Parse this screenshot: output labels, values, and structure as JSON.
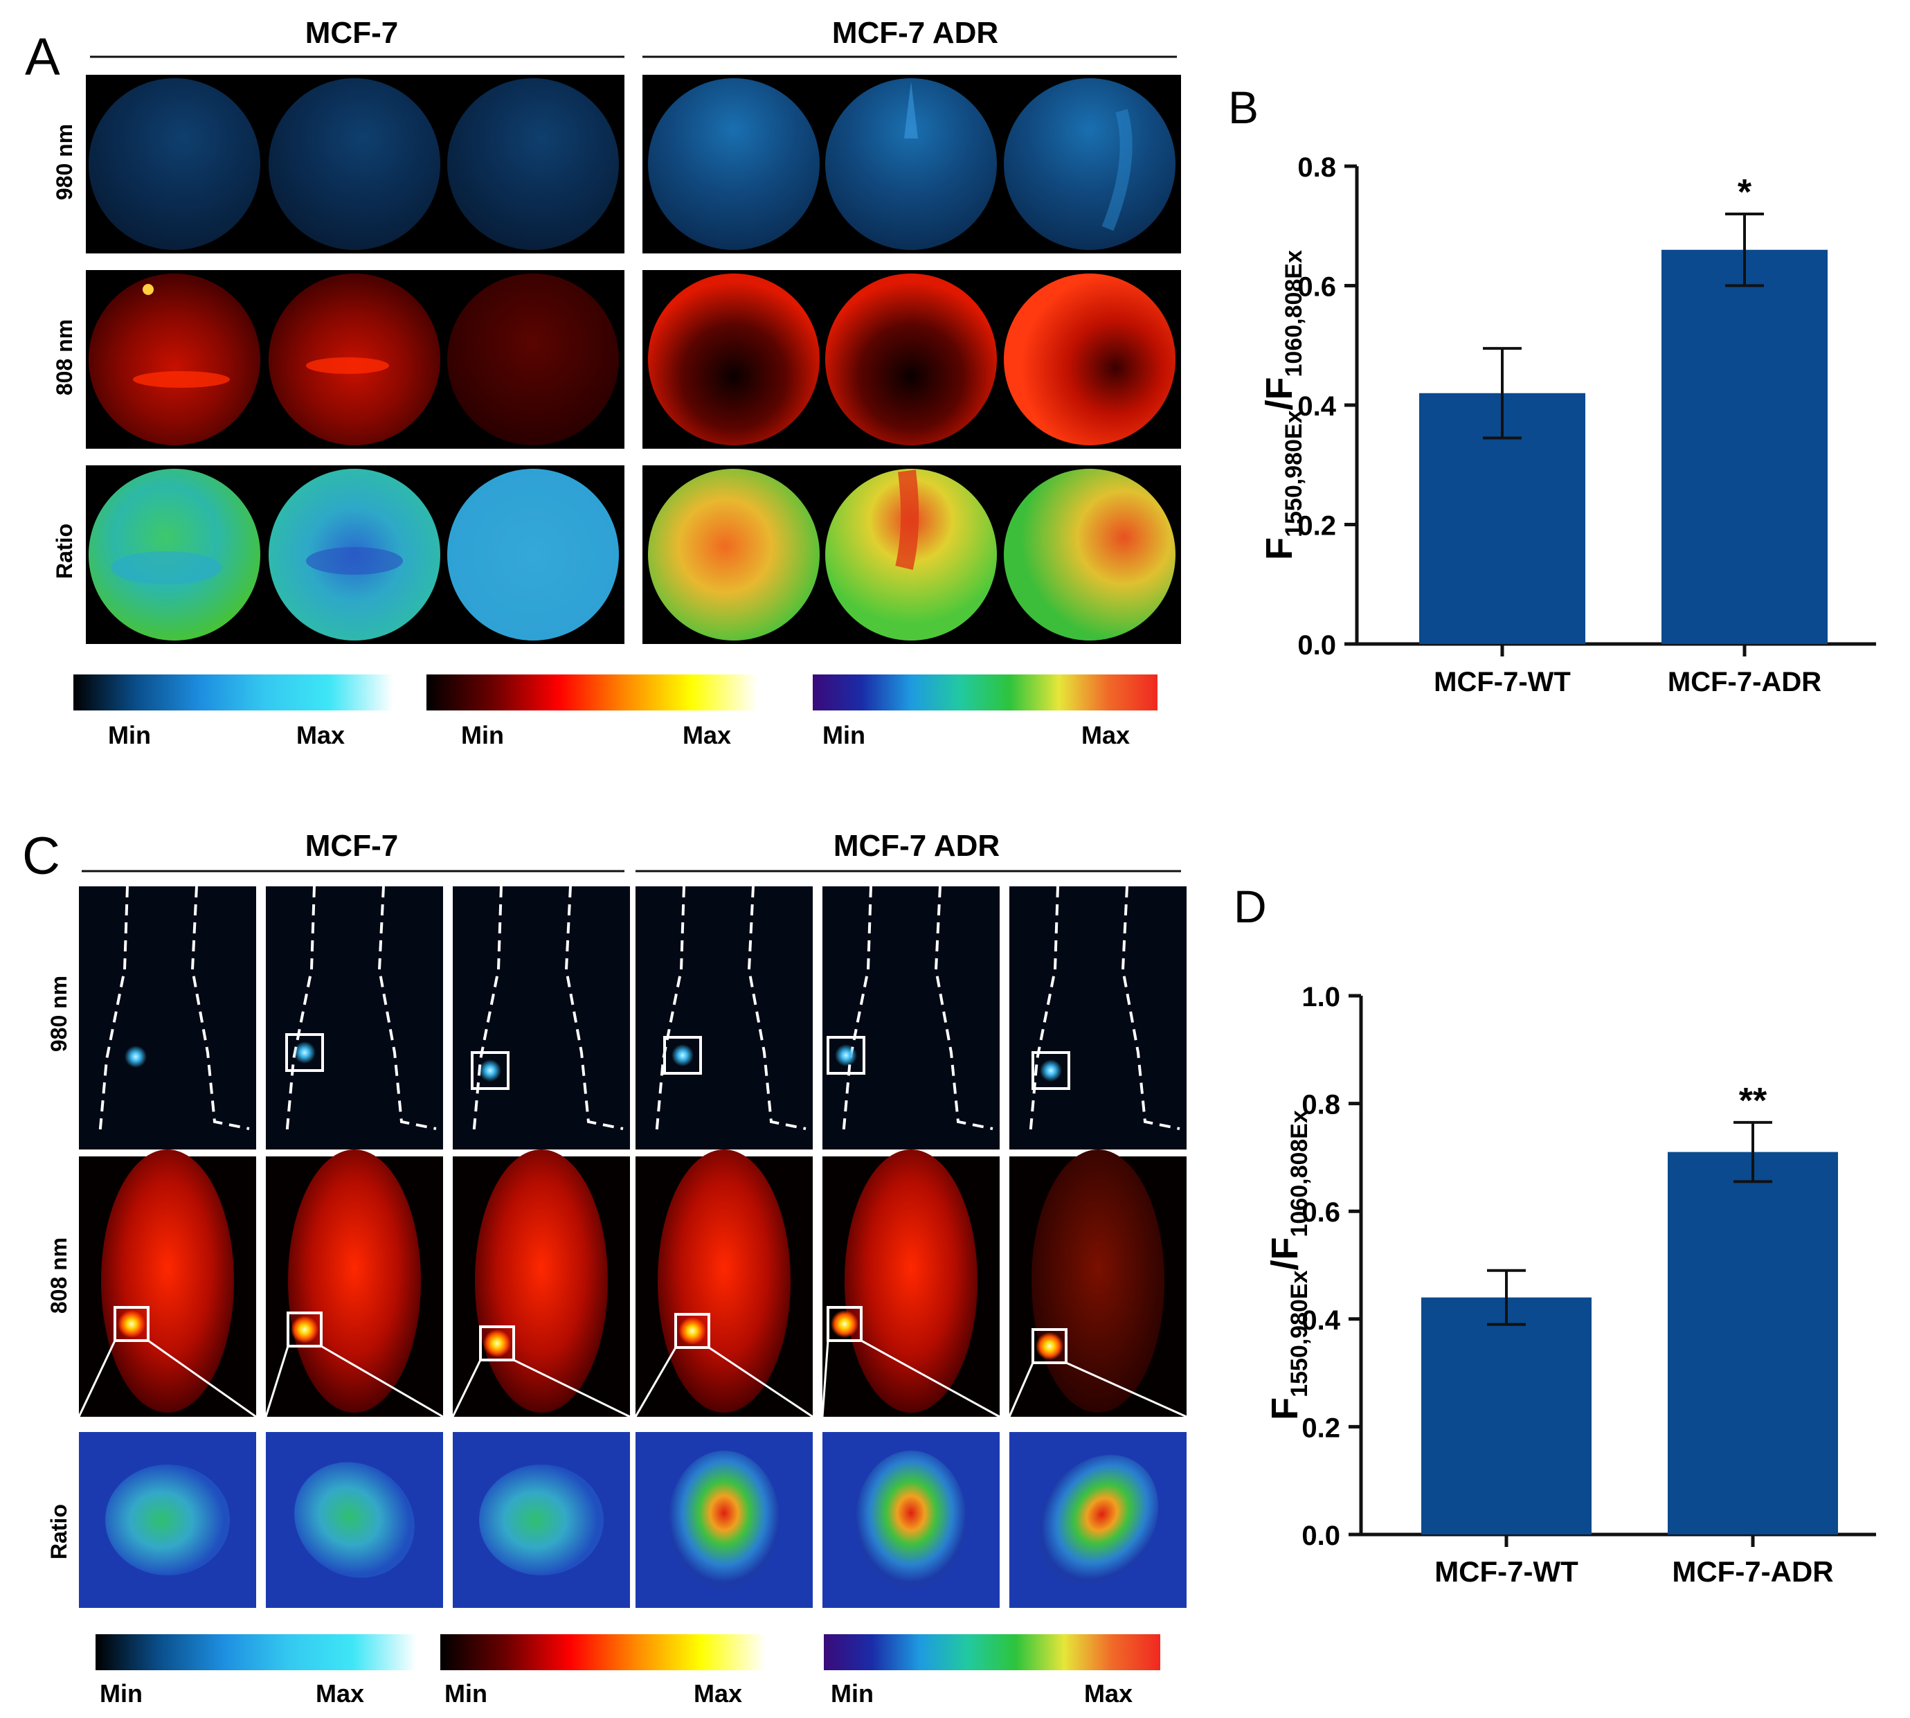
{
  "panels": {
    "A": {
      "letter": "A",
      "groups": [
        "MCF-7",
        "MCF-7 ADR"
      ],
      "rows": [
        "980 nm",
        "808 nm",
        "Ratio"
      ]
    },
    "B": {
      "letter": "B"
    },
    "C": {
      "letter": "C",
      "groups": [
        "MCF-7",
        "MCF-7 ADR"
      ],
      "rows": [
        "980 nm",
        "808 nm",
        "Ratio"
      ]
    },
    "D": {
      "letter": "D"
    }
  },
  "colorbars": {
    "min_label": "Min",
    "max_label": "Max",
    "blue_scale": [
      "#000000",
      "#0a4f8c",
      "#1e8fe0",
      "#34c8f0",
      "#3ee6f6",
      "#ffffff"
    ],
    "heat_scale": [
      "#000000",
      "#6a0000",
      "#ff0000",
      "#ff8800",
      "#ffff00",
      "#ffffff"
    ],
    "jet_scale": [
      "#3a0a7a",
      "#1a2ca8",
      "#1e9be0",
      "#22c9a0",
      "#2ec43c",
      "#e6e63a",
      "#f06a28",
      "#f02820"
    ]
  },
  "chart_data": [
    {
      "panel": "B",
      "type": "bar",
      "categories": [
        "MCF-7-WT",
        "MCF-7-ADR"
      ],
      "values": [
        0.42,
        0.66
      ],
      "errors": [
        0.075,
        0.06
      ],
      "significance": [
        "",
        "*"
      ],
      "ylabel_main": "F",
      "ylabel_sub1": "1550,980Ex",
      "ylabel_mid": "/F",
      "ylabel_sub2": "1060,808Ex",
      "ylim": [
        0,
        0.8
      ],
      "yticks": [
        "0.0",
        "0.2",
        "0.4",
        "0.6",
        "0.8"
      ],
      "bar_color": "#0b4a8f"
    },
    {
      "panel": "D",
      "type": "bar",
      "categories": [
        "MCF-7-WT",
        "MCF-7-ADR"
      ],
      "values": [
        0.44,
        0.71
      ],
      "errors": [
        0.05,
        0.055
      ],
      "significance": [
        "",
        "**"
      ],
      "ylabel_main": "F",
      "ylabel_sub1": "1550,980Ex",
      "ylabel_mid": "/F",
      "ylabel_sub2": "1060,808Ex",
      "ylim": [
        0,
        1.0
      ],
      "yticks": [
        "0.0",
        "0.2",
        "0.4",
        "0.6",
        "0.8",
        "1.0"
      ],
      "bar_color": "#0b4a8f"
    }
  ]
}
